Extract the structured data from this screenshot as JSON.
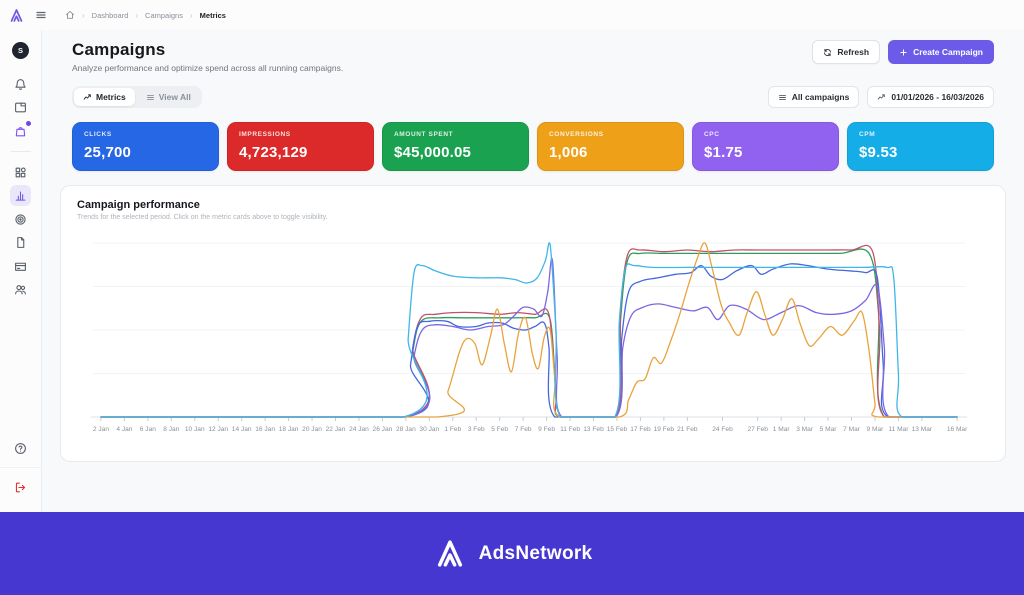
{
  "brand": {
    "name": "AdsNetwork",
    "accent_color": "#6c5be8",
    "footer_color": "#4637d0"
  },
  "topbar": {
    "icons": [
      "app-logo",
      "hamburger-icon",
      "home-icon"
    ],
    "breadcrumb": {
      "items": [
        "Dashboard",
        "Campaigns",
        "Metrics"
      ]
    }
  },
  "sidebar": {
    "avatar_initial": "S",
    "top_icons": [
      {
        "name": "bell-icon"
      },
      {
        "name": "tab-icon"
      },
      {
        "name": "bag-icon",
        "color": "#7a52f0",
        "badge": true
      }
    ],
    "nav_icons": [
      {
        "name": "grid-icon"
      },
      {
        "name": "bar-chart-icon",
        "active": true
      },
      {
        "name": "target-icon"
      },
      {
        "name": "document-icon"
      },
      {
        "name": "credit-card-icon"
      },
      {
        "name": "users-icon"
      }
    ],
    "bottom_icons": [
      {
        "name": "help-icon"
      },
      {
        "name": "logout-icon",
        "color": "#e03131"
      }
    ]
  },
  "header": {
    "title": "Campaigns",
    "subtitle": "Analyze performance and optimize spend across all running campaigns.",
    "refresh_label": "Refresh",
    "create_label": "Create Campaign"
  },
  "toolbar": {
    "tabs": [
      {
        "label": "Metrics",
        "icon": "trend-icon",
        "active": true
      },
      {
        "label": "View All",
        "icon": "list-icon",
        "active": false
      }
    ],
    "filter_label": "All campaigns",
    "date_range": "01/01/2026 - 16/03/2026"
  },
  "cards": [
    {
      "label": "CLICKS",
      "value": "25,700",
      "color": "#2667e6"
    },
    {
      "label": "IMPRESSIONS",
      "value": "4,723,129",
      "color": "#dc2a2a"
    },
    {
      "label": "AMOUNT SPENT",
      "value": "$45,000.05",
      "color": "#1aa251"
    },
    {
      "label": "CONVERSIONS",
      "value": "1,006",
      "color": "#efa019"
    },
    {
      "label": "CPC",
      "value": "$1.75",
      "color": "#9161f0"
    },
    {
      "label": "CPM",
      "value": "$9.53",
      "color": "#15ade8"
    }
  ],
  "chart": {
    "title": "Campaign performance",
    "subtitle": "Trends for the selected period. Click on the metric cards above to toggle visibility."
  },
  "chart_data": {
    "type": "line",
    "title": "Campaign performance",
    "x_unit": "days from 2 Jan 2026",
    "x_range": [
      0,
      73
    ],
    "ylim": [
      0,
      100
    ],
    "y_axis_labels": "none",
    "grid": "faint-horizontal",
    "legend": "none",
    "x_ticks": [
      [
        0,
        "2 Jan"
      ],
      [
        2,
        "4 Jan"
      ],
      [
        4,
        "6 Jan"
      ],
      [
        6,
        "8 Jan"
      ],
      [
        8,
        "10 Jan"
      ],
      [
        10,
        "12 Jan"
      ],
      [
        12,
        "14 Jan"
      ],
      [
        14,
        "16 Jan"
      ],
      [
        16,
        "18 Jan"
      ],
      [
        18,
        "20 Jan"
      ],
      [
        20,
        "22 Jan"
      ],
      [
        22,
        "24 Jan"
      ],
      [
        24,
        "26 Jan"
      ],
      [
        26,
        "28 Jan"
      ],
      [
        28,
        "30 Jan"
      ],
      [
        30,
        "1 Feb"
      ],
      [
        32,
        "3 Feb"
      ],
      [
        34,
        "5 Feb"
      ],
      [
        36,
        "7 Feb"
      ],
      [
        38,
        "9 Feb"
      ],
      [
        40,
        "11 Feb"
      ],
      [
        42,
        "13 Feb"
      ],
      [
        44,
        "15 Feb"
      ],
      [
        46,
        "17 Feb"
      ],
      [
        48,
        "19 Feb"
      ],
      [
        50,
        "21 Feb"
      ],
      [
        53,
        "24 Feb"
      ],
      [
        56,
        "27 Feb"
      ],
      [
        58,
        "1 Mar"
      ],
      [
        60,
        "3 Mar"
      ],
      [
        62,
        "5 Mar"
      ],
      [
        64,
        "7 Mar"
      ],
      [
        66,
        "9 Mar"
      ],
      [
        68,
        "11 Mar"
      ],
      [
        70,
        "13 Mar"
      ],
      [
        73,
        "16 Mar"
      ]
    ],
    "series": [
      {
        "name": "Amount Spent",
        "color": "#2e9e57",
        "points": [
          [
            0,
            0
          ],
          [
            25.9,
            0
          ],
          [
            26.6,
            38
          ],
          [
            27.3,
            55
          ],
          [
            29,
            57
          ],
          [
            31,
            57
          ],
          [
            33,
            57
          ],
          [
            35,
            57
          ],
          [
            37,
            57
          ],
          [
            38.3,
            56
          ],
          [
            38.8,
            12
          ],
          [
            39.2,
            0
          ],
          [
            43.9,
            0
          ],
          [
            44.3,
            55
          ],
          [
            44.9,
            90
          ],
          [
            46,
            94
          ],
          [
            48,
            94
          ],
          [
            51,
            94
          ],
          [
            54,
            94
          ],
          [
            57,
            94
          ],
          [
            60,
            94
          ],
          [
            63,
            94
          ],
          [
            65.5,
            94
          ],
          [
            66.3,
            60
          ],
          [
            66.8,
            0
          ],
          [
            73,
            0
          ]
        ]
      },
      {
        "name": "Impressions",
        "color": "#c4506d",
        "points": [
          [
            0,
            0
          ],
          [
            25.9,
            0
          ],
          [
            26.6,
            40
          ],
          [
            27.3,
            57
          ],
          [
            28.5,
            59
          ],
          [
            30,
            60
          ],
          [
            32,
            60
          ],
          [
            34,
            59
          ],
          [
            35.5,
            60
          ],
          [
            37,
            59
          ],
          [
            38.2,
            59
          ],
          [
            38.8,
            15
          ],
          [
            39.2,
            0
          ],
          [
            43.9,
            0
          ],
          [
            44.3,
            60
          ],
          [
            44.9,
            93
          ],
          [
            46,
            96
          ],
          [
            48,
            95
          ],
          [
            50,
            96
          ],
          [
            52,
            95
          ],
          [
            54,
            96
          ],
          [
            56,
            96
          ],
          [
            58,
            96
          ],
          [
            60,
            96
          ],
          [
            62,
            96
          ],
          [
            64,
            96
          ],
          [
            65.8,
            95
          ],
          [
            66.4,
            50
          ],
          [
            66.8,
            0
          ],
          [
            73,
            0
          ]
        ]
      },
      {
        "name": "Clicks",
        "color": "#4169e1",
        "points": [
          [
            0,
            0
          ],
          [
            25.9,
            0
          ],
          [
            26.4,
            30
          ],
          [
            27,
            52
          ],
          [
            28,
            55
          ],
          [
            29.5,
            55
          ],
          [
            30.5,
            52
          ],
          [
            32,
            52
          ],
          [
            33,
            54
          ],
          [
            34.2,
            54
          ],
          [
            35.2,
            51
          ],
          [
            36.2,
            50
          ],
          [
            37,
            52
          ],
          [
            37.8,
            54
          ],
          [
            38.2,
            40
          ],
          [
            38.7,
            0
          ],
          [
            43.9,
            0
          ],
          [
            44.4,
            45
          ],
          [
            45,
            72
          ],
          [
            46,
            78
          ],
          [
            47.5,
            80
          ],
          [
            49,
            82
          ],
          [
            50.3,
            83
          ],
          [
            51.2,
            87
          ],
          [
            52,
            81
          ],
          [
            53,
            79
          ],
          [
            54.2,
            84
          ],
          [
            55.5,
            87
          ],
          [
            56.3,
            82
          ],
          [
            57.3,
            85
          ],
          [
            58.8,
            88
          ],
          [
            60.3,
            87
          ],
          [
            62,
            85
          ],
          [
            63.8,
            84
          ],
          [
            65.2,
            83
          ],
          [
            66.2,
            80
          ],
          [
            66.7,
            30
          ],
          [
            67.1,
            0
          ],
          [
            73,
            0
          ]
        ]
      },
      {
        "name": "CPC",
        "color": "#7d66e3",
        "points": [
          [
            0,
            0
          ],
          [
            25.9,
            0
          ],
          [
            26.7,
            35
          ],
          [
            27.4,
            50
          ],
          [
            28.5,
            53
          ],
          [
            30,
            52
          ],
          [
            31.5,
            50
          ],
          [
            33,
            52
          ],
          [
            34.3,
            53
          ],
          [
            35.2,
            58
          ],
          [
            36,
            63
          ],
          [
            36.9,
            62
          ],
          [
            37.6,
            58
          ],
          [
            38.1,
            72
          ],
          [
            38.5,
            90
          ],
          [
            38.9,
            35
          ],
          [
            39.3,
            0
          ],
          [
            43.9,
            0
          ],
          [
            44.5,
            40
          ],
          [
            45.2,
            58
          ],
          [
            46.2,
            63
          ],
          [
            47.5,
            65
          ],
          [
            49,
            63
          ],
          [
            50.5,
            61
          ],
          [
            51.7,
            63
          ],
          [
            52.6,
            56
          ],
          [
            53.6,
            64
          ],
          [
            55,
            62
          ],
          [
            56.5,
            56
          ],
          [
            58,
            60
          ],
          [
            59.5,
            64
          ],
          [
            61,
            60
          ],
          [
            62.5,
            59
          ],
          [
            64,
            61
          ],
          [
            65.2,
            67
          ],
          [
            66.2,
            75
          ],
          [
            66.8,
            40
          ],
          [
            67.2,
            0
          ],
          [
            73,
            0
          ]
        ]
      },
      {
        "name": "Conversions",
        "color": "#e8a33d",
        "points": [
          [
            0,
            0
          ],
          [
            28.6,
            0
          ],
          [
            29.6,
            15
          ],
          [
            30.6,
            38
          ],
          [
            31.2,
            45
          ],
          [
            31.9,
            42
          ],
          [
            32.5,
            30
          ],
          [
            33.2,
            46
          ],
          [
            33.8,
            62
          ],
          [
            34.4,
            42
          ],
          [
            35,
            26
          ],
          [
            35.6,
            48
          ],
          [
            36.2,
            57
          ],
          [
            36.8,
            36
          ],
          [
            37.3,
            28
          ],
          [
            37.8,
            46
          ],
          [
            38.3,
            50
          ],
          [
            38.7,
            22
          ],
          [
            39.1,
            0
          ],
          [
            44.2,
            0
          ],
          [
            45,
            10
          ],
          [
            45.7,
            20
          ],
          [
            46.4,
            22
          ],
          [
            47.1,
            34
          ],
          [
            47.8,
            31
          ],
          [
            48.6,
            44
          ],
          [
            49.4,
            60
          ],
          [
            50.1,
            76
          ],
          [
            50.9,
            92
          ],
          [
            51.5,
            100
          ],
          [
            52.1,
            86
          ],
          [
            52.9,
            64
          ],
          [
            53.6,
            54
          ],
          [
            54.4,
            47
          ],
          [
            55.1,
            60
          ],
          [
            55.9,
            72
          ],
          [
            56.6,
            59
          ],
          [
            57.3,
            47
          ],
          [
            58.1,
            56
          ],
          [
            58.9,
            68
          ],
          [
            59.6,
            54
          ],
          [
            60.4,
            41
          ],
          [
            61.2,
            45
          ],
          [
            62.2,
            52
          ],
          [
            63.2,
            47
          ],
          [
            64.2,
            55
          ],
          [
            64.9,
            60
          ],
          [
            65.5,
            38
          ],
          [
            66,
            8
          ],
          [
            66.3,
            0
          ],
          [
            73,
            0
          ]
        ]
      },
      {
        "name": "CPM",
        "color": "#3fb6e8",
        "points": [
          [
            0,
            0
          ],
          [
            25.8,
            0
          ],
          [
            26.2,
            45
          ],
          [
            26.7,
            83
          ],
          [
            27.4,
            87
          ],
          [
            28.5,
            84
          ],
          [
            30,
            81
          ],
          [
            32,
            80
          ],
          [
            34,
            80
          ],
          [
            35.3,
            79
          ],
          [
            36.3,
            77
          ],
          [
            37.2,
            80
          ],
          [
            37.9,
            90
          ],
          [
            38.3,
            99
          ],
          [
            38.8,
            50
          ],
          [
            39.2,
            0
          ],
          [
            43.8,
            0
          ],
          [
            44.2,
            55
          ],
          [
            44.7,
            85
          ],
          [
            45.5,
            87
          ],
          [
            47,
            86
          ],
          [
            50,
            86
          ],
          [
            53,
            86
          ],
          [
            56,
            86
          ],
          [
            59,
            86
          ],
          [
            62,
            86
          ],
          [
            65,
            86
          ],
          [
            67,
            86
          ],
          [
            67.6,
            80
          ],
          [
            68,
            25
          ],
          [
            68.3,
            0
          ],
          [
            73,
            0
          ]
        ]
      }
    ]
  },
  "footer": {
    "brand": "AdsNetwork"
  }
}
